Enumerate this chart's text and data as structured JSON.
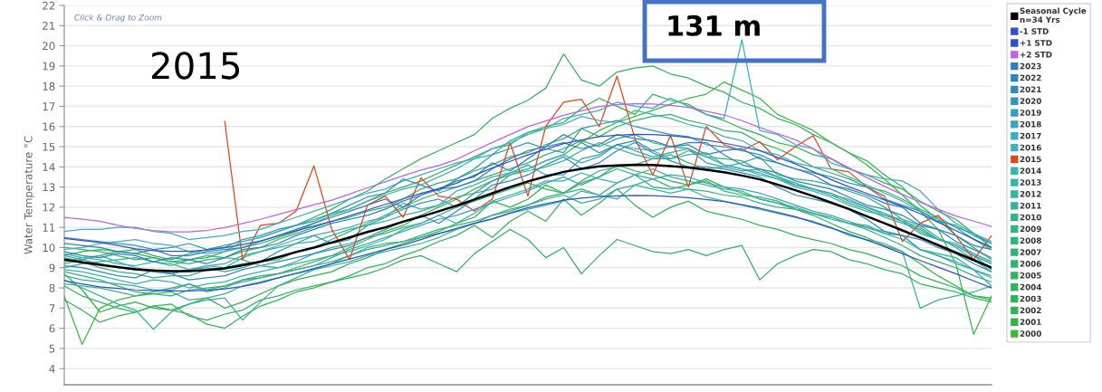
{
  "chart_data": {
    "type": "line",
    "ylabel": "Water Temperature °C",
    "annotations": [
      "Click & Drag to Zoom",
      "2015",
      "131 m"
    ],
    "categories": [
      null,
      null,
      null,
      null,
      null,
      null,
      null,
      null,
      null,
      null,
      null,
      null,
      null,
      null,
      null,
      null,
      null,
      null,
      null,
      null,
      null,
      null,
      null,
      null,
      null,
      null,
      null,
      null,
      null,
      null,
      null,
      null,
      null,
      null,
      null,
      null,
      null,
      null,
      null,
      null,
      null,
      null,
      null,
      null,
      null,
      null,
      null,
      null,
      null,
      null,
      null,
      null,
      null
    ],
    "ylim": [
      3.2,
      22
    ],
    "yticks": [
      4,
      5,
      6,
      7,
      8,
      9,
      10,
      11,
      12,
      13,
      14,
      15,
      16,
      17,
      18,
      19,
      20,
      21,
      22
    ],
    "grid": "y",
    "legend": "right",
    "tick_labels": "y",
    "line_style": "solid",
    "series": [
      {
        "name": "Seasonal Cycle\nn=34 Yrs",
        "color": "#000000",
        "values": [
          9.4,
          9.27,
          9.15,
          9.03,
          8.92,
          8.86,
          8.83,
          8.83,
          8.89,
          8.97,
          9.12,
          9.3,
          9.53,
          9.78,
          10.0,
          10.25,
          10.5,
          10.77,
          11.0,
          11.28,
          11.53,
          11.8,
          12.08,
          12.38,
          12.69,
          13.0,
          13.28,
          13.52,
          13.75,
          13.9,
          14.02,
          14.07,
          14.1,
          14.09,
          14.04,
          13.97,
          13.86,
          13.73,
          13.57,
          13.38,
          13.12,
          12.84,
          12.55,
          12.23,
          11.91,
          11.55,
          11.2,
          10.85,
          10.5,
          10.12,
          9.75,
          9.38,
          9.0
        ]
      },
      {
        "name": "-1 STD",
        "color": "#2b50d0",
        "values": [
          8.35,
          8.2,
          8.05,
          7.97,
          7.9,
          7.87,
          7.85,
          7.85,
          7.88,
          7.95,
          8.07,
          8.24,
          8.5,
          8.73,
          8.96,
          9.2,
          9.43,
          9.67,
          9.9,
          10.13,
          10.4,
          10.69,
          10.95,
          11.19,
          11.43,
          11.71,
          11.98,
          12.17,
          12.35,
          12.45,
          12.53,
          12.56,
          12.58,
          12.57,
          12.53,
          12.47,
          12.38,
          12.28,
          12.12,
          11.95,
          11.74,
          11.53,
          11.25,
          10.97,
          10.68,
          10.37,
          10.05,
          9.7,
          9.36,
          9.03,
          8.7,
          8.35,
          8.0
        ]
      },
      {
        "name": "+1 STD",
        "color": "#2b50d0",
        "values": [
          10.45,
          10.35,
          10.25,
          10.1,
          9.94,
          9.85,
          9.81,
          9.81,
          9.88,
          9.99,
          10.15,
          10.33,
          10.58,
          10.83,
          11.07,
          11.3,
          11.57,
          11.86,
          12.14,
          12.42,
          12.68,
          12.92,
          13.19,
          13.58,
          13.94,
          14.27,
          14.59,
          14.87,
          15.15,
          15.33,
          15.5,
          15.57,
          15.61,
          15.6,
          15.54,
          15.46,
          15.32,
          15.18,
          15.0,
          14.8,
          14.47,
          14.15,
          13.76,
          13.37,
          13.01,
          12.69,
          12.36,
          12.03,
          11.68,
          11.26,
          10.84,
          10.42,
          10.0
        ]
      },
      {
        "name": "+2 STD",
        "color": "#c060ea",
        "values": [
          11.5,
          11.4,
          11.3,
          11.1,
          10.94,
          10.85,
          10.78,
          10.78,
          10.85,
          10.99,
          11.19,
          11.4,
          11.64,
          11.88,
          12.12,
          12.35,
          12.65,
          12.96,
          13.26,
          13.56,
          13.84,
          14.06,
          14.37,
          14.8,
          15.21,
          15.6,
          15.99,
          16.27,
          16.55,
          16.78,
          16.99,
          17.08,
          17.13,
          17.11,
          17.05,
          16.95,
          16.76,
          16.57,
          16.29,
          15.95,
          15.65,
          15.34,
          14.9,
          14.41,
          13.95,
          13.47,
          13.03,
          12.63,
          12.25,
          11.9,
          11.56,
          11.31,
          11.05
        ]
      },
      {
        "name": "2023",
        "color": "#2f7fc1",
        "values": [
          9.8,
          9.6,
          9.5,
          9.7,
          9.6,
          9.3,
          9.5,
          9.4,
          9.2,
          9.5,
          9.9,
          10.0,
          10.2,
          10.6,
          10.9,
          11.2,
          11.4,
          11.6,
          11.9,
          12.3,
          12.6,
          12.9,
          13.0,
          13.3,
          13.9,
          14.4,
          14.8,
          15.0,
          15.2,
          14.9,
          15.1,
          15.6,
          15.4,
          15.3,
          15.0,
          15.1,
          14.6,
          14.8,
          14.9,
          14.4,
          14.2,
          13.9,
          13.6,
          13.1,
          12.9,
          12.6,
          12.2,
          12.0,
          11.2,
          10.9,
          10.6,
          10.1,
          9.9
        ]
      },
      {
        "name": "2022",
        "color": "#3084be",
        "values": [
          10.2,
          10.1,
          10.0,
          9.8,
          9.7,
          9.9,
          9.6,
          9.6,
          9.8,
          9.9,
          10.0,
          10.3,
          10.6,
          10.9,
          11.2,
          11.5,
          11.8,
          12.1,
          12.4,
          12.0,
          12.6,
          12.9,
          13.3,
          13.5,
          14.2,
          13.8,
          14.4,
          15.0,
          15.6,
          15.2,
          14.7,
          15.1,
          15.3,
          14.8,
          15.0,
          15.2,
          15.2,
          14.6,
          14.1,
          13.9,
          13.7,
          13.3,
          13.1,
          12.9,
          12.5,
          12.1,
          11.9,
          11.6,
          11.1,
          10.9,
          10.3,
          9.9,
          9.5
        ]
      },
      {
        "name": "2021",
        "color": "#318cbd",
        "values": [
          9.1,
          9.0,
          8.8,
          8.6,
          8.5,
          8.9,
          8.7,
          8.4,
          8.5,
          8.6,
          8.9,
          9.1,
          9.3,
          9.5,
          9.7,
          9.9,
          10.1,
          10.5,
          10.9,
          11.3,
          11.6,
          11.2,
          11.8,
          12.4,
          13.1,
          13.3,
          13.6,
          14.1,
          14.5,
          13.9,
          14.2,
          14.8,
          15.2,
          14.7,
          14.3,
          14.0,
          14.0,
          13.9,
          13.7,
          13.5,
          13.0,
          12.6,
          12.4,
          12.2,
          11.9,
          11.4,
          10.8,
          10.6,
          10.4,
          10.0,
          9.7,
          9.2,
          8.8
        ]
      },
      {
        "name": "2020",
        "color": "#3395bd",
        "values": [
          10.5,
          10.4,
          10.3,
          10.2,
          10.1,
          9.9,
          10.0,
          10.2,
          9.9,
          10.0,
          10.4,
          10.6,
          10.9,
          11.1,
          11.3,
          11.7,
          12.1,
          12.5,
          12.7,
          13.4,
          13.1,
          12.8,
          13.4,
          13.9,
          14.6,
          14.9,
          15.2,
          14.9,
          14.7,
          15.9,
          16.1,
          16.3,
          16.0,
          15.8,
          15.6,
          15.5,
          15.1,
          15.0,
          14.8,
          14.6,
          14.2,
          13.9,
          13.7,
          13.5,
          13.2,
          13.0,
          12.4,
          12.1,
          11.8,
          11.3,
          11.1,
          10.6,
          10.2
        ]
      },
      {
        "name": "2019",
        "color": "#349ebd",
        "values": [
          9.6,
          9.4,
          9.2,
          9.0,
          8.9,
          8.8,
          8.7,
          8.9,
          9.0,
          8.8,
          9.0,
          9.3,
          9.8,
          10.2,
          10.6,
          10.2,
          10.4,
          11.1,
          11.5,
          11.9,
          12.2,
          12.4,
          12.0,
          12.7,
          13.3,
          13.7,
          14.1,
          13.6,
          13.6,
          14.4,
          14.6,
          15.1,
          14.8,
          14.5,
          14.7,
          14.9,
          14.2,
          14.0,
          13.8,
          13.9,
          13.5,
          13.1,
          12.9,
          12.7,
          12.3,
          12.0,
          11.7,
          11.3,
          10.7,
          10.4,
          10.2,
          9.7,
          9.3
        ]
      },
      {
        "name": "2018",
        "color": "#36a6bd",
        "values": [
          8.6,
          8.4,
          8.3,
          8.2,
          8.1,
          7.9,
          7.9,
          8.2,
          7.8,
          8.0,
          8.4,
          8.5,
          8.7,
          8.9,
          9.1,
          9.5,
          9.9,
          10.2,
          10.5,
          10.8,
          11.1,
          11.4,
          11.6,
          11.9,
          12.2,
          12.5,
          12.8,
          13.2,
          13.5,
          13.1,
          13.5,
          13.9,
          13.6,
          13.4,
          13.6,
          13.5,
          13.2,
          13.0,
          12.9,
          12.7,
          12.4,
          12.1,
          11.8,
          11.6,
          11.3,
          11.0,
          10.7,
          10.6,
          9.9,
          9.6,
          9.2,
          8.9,
          8.5
        ]
      },
      {
        "name": "2017",
        "color": "#39b0c0",
        "values": [
          10.8,
          10.9,
          10.9,
          11.0,
          11.0,
          10.8,
          10.7,
          10.4,
          10.5,
          10.6,
          10.8,
          10.9,
          11.2,
          11.5,
          11.8,
          12.1,
          12.4,
          12.7,
          12.9,
          13.3,
          13.6,
          13.9,
          14.2,
          14.4,
          14.6,
          15.3,
          15.7,
          15.9,
          16.4,
          16.6,
          16.8,
          17.2,
          17.0,
          16.9,
          17.4,
          17.0,
          16.6,
          16.4,
          20.3,
          15.8,
          15.6,
          15.1,
          14.9,
          14.2,
          13.9,
          13.6,
          13.4,
          13.3,
          12.8,
          11.9,
          11.2,
          10.7,
          10.2
        ]
      },
      {
        "name": "2016",
        "color": "#3ab5bb",
        "values": [
          9.9,
          10.0,
          10.2,
          10.3,
          10.4,
          10.2,
          10.1,
          9.8,
          9.7,
          9.8,
          10.3,
          10.5,
          10.8,
          11.1,
          11.4,
          11.7,
          11.9,
          12.3,
          12.6,
          12.9,
          13.1,
          13.5,
          13.9,
          14.4,
          14.9,
          15.2,
          15.6,
          15.9,
          16.1,
          16.5,
          16.3,
          16.2,
          16.8,
          16.6,
          16.4,
          16.1,
          15.9,
          15.5,
          15.3,
          14.8,
          14.6,
          14.2,
          14.0,
          13.9,
          13.5,
          13.1,
          12.7,
          12.3,
          11.8,
          11.4,
          11.0,
          10.7,
          10.3
        ]
      },
      {
        "name": "2015",
        "color": "#ec4118",
        "values": [
          null,
          null,
          null,
          null,
          null,
          null,
          null,
          null,
          null,
          16.25,
          9.4,
          11.1,
          11.2,
          11.8,
          14.05,
          10.9,
          9.4,
          12.1,
          12.55,
          11.5,
          13.45,
          12.55,
          12.4,
          11.8,
          12.4,
          15.2,
          12.55,
          16.0,
          17.2,
          17.35,
          16.0,
          18.5,
          15.4,
          13.6,
          15.55,
          13.0,
          16.0,
          15.1,
          14.8,
          15.25,
          14.35,
          15.0,
          15.55,
          13.9,
          13.75,
          13.0,
          12.55,
          10.3,
          11.2,
          11.6,
          10.6,
          9.4,
          10.6
        ]
      },
      {
        "name": "2014",
        "color": "#38b5ad",
        "values": [
          9.3,
          9.5,
          9.6,
          9.3,
          9.0,
          8.8,
          8.7,
          8.9,
          9.1,
          9.0,
          9.5,
          9.8,
          10.1,
          10.4,
          10.6,
          10.8,
          11.0,
          11.3,
          11.5,
          12.2,
          11.9,
          12.1,
          12.8,
          13.1,
          13.5,
          13.7,
          13.9,
          14.3,
          14.6,
          14.2,
          14.5,
          15.1,
          14.9,
          14.8,
          14.4,
          14.6,
          14.7,
          14.1,
          13.9,
          13.6,
          13.4,
          13.0,
          12.8,
          12.5,
          12.1,
          11.8,
          11.6,
          11.4,
          10.8,
          10.4,
          10.1,
          9.6,
          9.2
        ]
      },
      {
        "name": "2013",
        "color": "#36b5a5",
        "values": [
          8.9,
          8.8,
          8.6,
          8.4,
          8.2,
          8.4,
          8.3,
          8.0,
          8.2,
          8.3,
          8.6,
          8.8,
          9.0,
          9.2,
          9.4,
          9.6,
          9.8,
          10.1,
          10.4,
          10.9,
          11.2,
          11.6,
          11.2,
          11.7,
          12.3,
          12.6,
          12.9,
          13.3,
          13.3,
          13.7,
          13.4,
          13.2,
          13.6,
          13.9,
          13.5,
          13.3,
          13.1,
          12.9,
          12.8,
          12.4,
          12.2,
          12.0,
          11.7,
          11.5,
          11.2,
          11.1,
          10.7,
          10.4,
          9.9,
          9.6,
          9.3,
          8.9,
          8.6
        ]
      },
      {
        "name": "2012",
        "color": "#35b49c",
        "values": [
          8.4,
          8.0,
          7.6,
          7.2,
          6.9,
          5.95,
          6.8,
          7.2,
          7.4,
          7.5,
          6.4,
          7.3,
          8.1,
          8.5,
          8.9,
          9.1,
          9.3,
          9.6,
          9.8,
          10.0,
          10.2,
          10.5,
          10.9,
          11.2,
          11.4,
          11.7,
          11.9,
          12.1,
          12.3,
          12.8,
          12.6,
          12.4,
          13.1,
          12.9,
          12.7,
          12.9,
          12.5,
          12.3,
          12.1,
          11.9,
          11.7,
          11.5,
          11.3,
          11.0,
          10.6,
          10.4,
          10.2,
          9.8,
          7.0,
          7.4,
          7.6,
          7.8,
          8.1
        ]
      },
      {
        "name": "2011",
        "color": "#34b494",
        "values": [
          9.7,
          9.5,
          9.4,
          9.2,
          9.1,
          9.3,
          9.2,
          8.9,
          9.1,
          9.2,
          9.6,
          9.8,
          10.0,
          10.2,
          10.3,
          10.6,
          10.9,
          11.1,
          11.3,
          11.6,
          11.8,
          12.1,
          12.5,
          12.7,
          12.9,
          13.6,
          13.8,
          14.0,
          14.3,
          14.8,
          15.2,
          14.9,
          14.6,
          14.4,
          14.4,
          14.8,
          14.5,
          14.1,
          13.9,
          13.7,
          13.4,
          13.1,
          12.9,
          12.6,
          12.4,
          12.0,
          11.6,
          11.3,
          11.0,
          10.4,
          10.1,
          9.6,
          8.9
        ]
      },
      {
        "name": "2010",
        "color": "#33b38b",
        "values": [
          8.2,
          8.1,
          8.0,
          7.8,
          7.6,
          7.7,
          7.8,
          7.4,
          7.5,
          7.7,
          8.1,
          8.3,
          8.5,
          8.7,
          8.9,
          9.2,
          9.6,
          9.9,
          10.1,
          10.3,
          10.5,
          10.7,
          10.9,
          11.2,
          11.6,
          11.9,
          12.1,
          12.4,
          12.6,
          12.2,
          12.4,
          12.9,
          13.1,
          13.4,
          13.0,
          12.9,
          12.8,
          12.6,
          12.5,
          12.2,
          12.0,
          11.9,
          11.7,
          11.5,
          11.2,
          11.0,
          10.8,
          10.6,
          9.9,
          9.7,
          9.5,
          8.9,
          8.1
        ]
      },
      {
        "name": "2009",
        "color": "#33b383",
        "values": [
          9.0,
          9.2,
          9.3,
          9.4,
          9.5,
          9.3,
          9.1,
          9.4,
          9.6,
          9.5,
          9.4,
          9.1,
          9.0,
          9.3,
          9.7,
          10.0,
          10.2,
          10.5,
          10.7,
          11.0,
          11.2,
          11.6,
          12.0,
          12.3,
          12.6,
          12.9,
          13.2,
          12.9,
          12.7,
          13.3,
          13.8,
          14.0,
          14.1,
          14.4,
          14.6,
          14.2,
          13.9,
          14.0,
          14.2,
          14.5,
          13.6,
          13.4,
          13.3,
          13.1,
          12.8,
          12.5,
          12.0,
          11.4,
          11.1,
          10.5,
          10.0,
          9.4,
          8.8
        ]
      },
      {
        "name": "2008",
        "color": "#32b37b",
        "values": [
          9.5,
          9.3,
          9.0,
          8.8,
          8.7,
          8.5,
          8.6,
          8.6,
          8.9,
          9.0,
          9.2,
          9.3,
          9.4,
          9.8,
          10.0,
          10.4,
          10.8,
          11.2,
          11.6,
          12.0,
          12.4,
          12.7,
          13.0,
          13.3,
          13.6,
          13.9,
          14.2,
          14.6,
          14.9,
          15.3,
          15.0,
          15.4,
          15.6,
          15.2,
          15.0,
          14.9,
          14.5,
          14.4,
          14.3,
          13.8,
          13.5,
          13.2,
          12.9,
          12.6,
          12.2,
          11.9,
          11.5,
          11.2,
          10.9,
          10.4,
          10.1,
          9.6,
          9.2
        ]
      },
      {
        "name": "2007",
        "color": "#31b373",
        "values": [
          8.8,
          8.6,
          8.4,
          8.1,
          7.8,
          7.7,
          7.6,
          7.9,
          8.0,
          8.1,
          8.3,
          8.5,
          8.7,
          8.9,
          9.1,
          9.3,
          9.6,
          10.0,
          10.2,
          10.3,
          10.6,
          10.9,
          11.1,
          11.3,
          11.6,
          11.8,
          12.1,
          12.5,
          12.7,
          12.9,
          12.6,
          13.2,
          13.6,
          13.0,
          12.9,
          13.1,
          13.3,
          12.8,
          12.6,
          12.5,
          12.3,
          11.9,
          11.7,
          11.4,
          11.2,
          10.9,
          10.5,
          10.1,
          9.6,
          9.3,
          9.0,
          8.6,
          8.3
        ]
      },
      {
        "name": "2006",
        "color": "#31b36b",
        "values": [
          10.0,
          9.9,
          9.8,
          9.6,
          9.4,
          9.5,
          9.3,
          9.2,
          9.4,
          9.5,
          9.8,
          10.0,
          10.4,
          10.7,
          11.0,
          11.3,
          11.5,
          11.8,
          12.0,
          12.4,
          12.9,
          13.2,
          13.4,
          13.8,
          14.1,
          14.5,
          14.7,
          15.1,
          15.4,
          15.9,
          15.5,
          16.0,
          16.3,
          16.5,
          16.6,
          16.3,
          16.1,
          15.8,
          15.7,
          15.2,
          14.9,
          14.5,
          14.0,
          13.7,
          13.4,
          13.0,
          12.8,
          12.4,
          11.9,
          11.5,
          11.0,
          10.4,
          9.9
        ]
      },
      {
        "name": "2005",
        "color": "#30b463",
        "values": [
          8.1,
          7.6,
          7.3,
          7.0,
          6.8,
          7.1,
          7.2,
          6.6,
          6.4,
          6.7,
          6.9,
          7.4,
          7.6,
          7.9,
          8.1,
          8.3,
          8.5,
          8.7,
          9.0,
          9.4,
          9.6,
          9.2,
          8.8,
          9.7,
          10.3,
          10.9,
          10.4,
          9.5,
          10.0,
          8.7,
          9.6,
          10.4,
          10.1,
          9.8,
          9.7,
          9.9,
          9.6,
          9.9,
          10.1,
          8.4,
          9.2,
          9.6,
          9.9,
          9.8,
          9.4,
          9.2,
          8.9,
          8.7,
          8.2,
          8.0,
          7.8,
          7.5,
          7.3
        ]
      },
      {
        "name": "2004",
        "color": "#30b45b",
        "values": [
          9.2,
          9.4,
          9.6,
          9.8,
          9.9,
          9.6,
          9.4,
          9.7,
          9.9,
          10.1,
          10.3,
          10.5,
          10.8,
          11.1,
          11.5,
          11.9,
          12.4,
          12.8,
          13.4,
          13.9,
          14.4,
          14.8,
          15.2,
          15.6,
          16.4,
          16.9,
          17.3,
          17.9,
          19.6,
          18.3,
          18.0,
          18.7,
          18.9,
          19.0,
          18.6,
          18.4,
          18.0,
          17.7,
          17.2,
          16.9,
          16.4,
          16.1,
          15.6,
          15.2,
          14.7,
          14.3,
          13.6,
          13.0,
          12.1,
          11.4,
          10.6,
          10.0,
          9.4
        ]
      },
      {
        "name": "2003",
        "color": "#2fb554",
        "values": [
          7.4,
          6.9,
          6.3,
          6.6,
          6.8,
          7.1,
          6.9,
          6.7,
          6.2,
          6.0,
          6.6,
          7.1,
          7.4,
          7.8,
          8.0,
          8.3,
          8.6,
          9.0,
          9.2,
          9.6,
          9.9,
          10.3,
          10.6,
          11.1,
          10.5,
          11.3,
          11.8,
          11.3,
          12.4,
          11.6,
          12.2,
          12.9,
          12.1,
          11.5,
          12.0,
          12.3,
          11.8,
          11.6,
          11.4,
          11.1,
          10.9,
          10.6,
          10.4,
          10.2,
          9.9,
          9.7,
          9.4,
          9.1,
          8.6,
          8.3,
          8.0,
          7.6,
          7.4
        ]
      },
      {
        "name": "2002",
        "color": "#2fb54c",
        "values": [
          9.6,
          9.8,
          9.9,
          9.8,
          9.7,
          9.5,
          9.3,
          9.4,
          9.5,
          9.8,
          10.0,
          10.2,
          10.5,
          10.8,
          11.2,
          11.6,
          11.9,
          12.3,
          12.7,
          13.0,
          13.3,
          13.7,
          14.1,
          14.5,
          14.9,
          15.1,
          15.7,
          16.0,
          16.2,
          16.9,
          17.4,
          17.0,
          16.6,
          17.6,
          17.3,
          17.1,
          16.6,
          16.3,
          15.9,
          15.6,
          15.2,
          15.0,
          14.6,
          14.4,
          13.9,
          13.6,
          13.2,
          12.9,
          12.3,
          11.8,
          11.4,
          10.7,
          10.0
        ]
      },
      {
        "name": "2001",
        "color": "#2eb545",
        "values": [
          8.7,
          7.9,
          6.8,
          7.1,
          7.3,
          7.0,
          6.9,
          7.2,
          7.5,
          7.0,
          7.3,
          7.7,
          8.1,
          8.4,
          8.6,
          8.8,
          9.2,
          9.5,
          9.9,
          10.2,
          10.5,
          10.8,
          11.2,
          11.5,
          12.3,
          12.0,
          12.4,
          13.1,
          12.7,
          13.2,
          13.5,
          14.1,
          13.8,
          13.6,
          13.3,
          13.1,
          13.4,
          13.0,
          12.7,
          12.4,
          12.2,
          11.9,
          11.6,
          11.2,
          10.8,
          10.5,
          10.1,
          9.8,
          9.2,
          8.6,
          8.1,
          7.6,
          7.5
        ]
      },
      {
        "name": "2000",
        "color": "#3cb83c",
        "values": [
          7.6,
          5.2,
          7.0,
          7.4,
          7.6,
          7.8,
          8.0,
          8.2,
          7.9,
          8.1,
          8.4,
          8.6,
          8.7,
          9.0,
          9.3,
          9.6,
          10.0,
          10.4,
          10.8,
          11.1,
          11.6,
          12.0,
          12.4,
          12.9,
          13.3,
          13.6,
          13.9,
          14.3,
          14.6,
          15.2,
          15.8,
          16.2,
          16.5,
          16.8,
          17.1,
          17.4,
          17.6,
          18.2,
          17.8,
          17.4,
          16.6,
          16.2,
          15.8,
          15.2,
          14.7,
          14.1,
          13.4,
          12.6,
          11.8,
          10.9,
          9.2,
          5.7,
          7.6
        ]
      }
    ]
  }
}
